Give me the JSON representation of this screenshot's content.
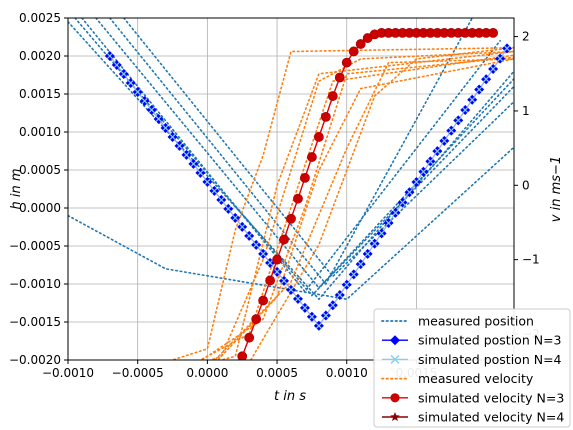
{
  "chart_data": {
    "type": "line",
    "xlabel": "t in s",
    "ylabel_left": "h in m",
    "ylabel_right": "v in ms−1",
    "xlim": [
      -0.001,
      0.0022
    ],
    "ylim_left": [
      -0.002,
      0.0025
    ],
    "ylim_right": [
      -2.35,
      2.25
    ],
    "x_ticks": [
      "−0.0010",
      "−0.0005",
      "0.0000",
      "0.0005",
      "0.0010",
      "0.0015"
    ],
    "y_left_ticks": [
      "−0.0020",
      "−0.0015",
      "−0.0010",
      "−0.0005",
      "0.0000",
      "0.0005",
      "0.0010",
      "0.0015",
      "0.0020",
      "0.0025"
    ],
    "y_right_ticks": [
      "−2",
      "−1",
      "0",
      "1",
      "2"
    ],
    "grid": true,
    "legend_position": "bottom-right",
    "legend": [
      "measured position",
      "simulated postion N=3",
      "simulated postion N=4",
      "measured velocity",
      "simulated velocity N=3",
      "simulated velocity N=4"
    ],
    "colors": {
      "measured_position": "#1f77b4",
      "simulated_position_n3": "#0000ff",
      "simulated_position_n4": "#87ceeb",
      "measured_velocity": "#ff7f0e",
      "simulated_velocity_n3": "#e00000",
      "simulated_velocity_n4": "#8b0000"
    },
    "measured_position_lines": [
      [
        [
          -0.001,
          0.00245
        ],
        [
          0.0008,
          -0.0012
        ],
        [
          0.0022,
          0.0018
        ]
      ],
      [
        [
          -0.00095,
          0.0025
        ],
        [
          0.00075,
          -0.00115
        ],
        [
          0.0022,
          0.0016
        ]
      ],
      [
        [
          -0.0009,
          0.0025
        ],
        [
          0.0007,
          -0.0011
        ],
        [
          0.0021,
          0.0022
        ]
      ],
      [
        [
          -0.0008,
          0.0025
        ],
        [
          0.0008,
          -0.00105
        ],
        [
          0.0022,
          0.0017
        ]
      ],
      [
        [
          -0.0007,
          0.0025
        ],
        [
          0.00085,
          -0.001
        ],
        [
          0.0019,
          0.0025
        ]
      ],
      [
        [
          -0.0006,
          0.0025
        ],
        [
          0.0009,
          -0.0009
        ],
        [
          0.0022,
          0.0014
        ]
      ],
      [
        [
          -0.001,
          -0.0001
        ],
        [
          -0.0003,
          -0.0008
        ],
        [
          0.001,
          -0.0012
        ],
        [
          0.0022,
          0.0008
        ]
      ]
    ],
    "measured_velocity_lines": [
      [
        [
          -0.001,
          -2.6
        ],
        [
          -0.0005,
          -2.5
        ],
        [
          0.0,
          -2.2
        ],
        [
          0.0002,
          -0.6
        ],
        [
          0.0004,
          0.4
        ],
        [
          0.0006,
          1.8
        ],
        [
          0.0022,
          1.85
        ]
      ],
      [
        [
          -0.001,
          -2.65
        ],
        [
          -0.0004,
          -2.6
        ],
        [
          0.0002,
          -2.3
        ],
        [
          0.0005,
          0.0
        ],
        [
          0.0008,
          1.5
        ],
        [
          0.0022,
          1.8
        ]
      ],
      [
        [
          -0.001,
          -2.4
        ],
        [
          -0.0005,
          -2.7
        ],
        [
          0.0001,
          -2.3
        ],
        [
          0.0004,
          -1.0
        ],
        [
          0.0008,
          1.4
        ],
        [
          0.0011,
          1.7
        ],
        [
          0.0022,
          1.8
        ]
      ],
      [
        [
          -0.001,
          -2.7
        ],
        [
          -0.0003,
          -2.6
        ],
        [
          0.0003,
          -2.0
        ],
        [
          0.0006,
          -0.3
        ],
        [
          0.0009,
          1.4
        ],
        [
          0.0022,
          1.75
        ]
      ],
      [
        [
          -0.001,
          -2.68
        ],
        [
          -0.0002,
          -2.55
        ],
        [
          0.0004,
          -1.8
        ],
        [
          0.0007,
          -0.3
        ],
        [
          0.001,
          1.5
        ],
        [
          0.0022,
          1.72
        ]
      ],
      [
        [
          -0.001,
          -2.8
        ],
        [
          0.0,
          -2.5
        ],
        [
          0.0005,
          -1.5
        ],
        [
          0.0008,
          0.2
        ],
        [
          0.0011,
          1.3
        ],
        [
          0.0022,
          1.7
        ]
      ],
      [
        [
          -0.001,
          -2.75
        ],
        [
          -0.0001,
          -2.65
        ],
        [
          0.0006,
          -1.3
        ],
        [
          0.001,
          0.5
        ],
        [
          0.0013,
          1.65
        ],
        [
          0.0022,
          1.7
        ]
      ],
      [
        [
          -0.001,
          -2.6
        ],
        [
          0.0002,
          -2.7
        ],
        [
          0.0008,
          -0.8
        ],
        [
          0.0012,
          1.2
        ],
        [
          0.0015,
          1.7
        ],
        [
          0.0022,
          1.85
        ]
      ]
    ],
    "simulated_position_n3": {
      "x_start": -0.0007,
      "x_step": 5e-05,
      "count": 58,
      "vertex_x": 0.0008,
      "vertex_y": -0.00155,
      "left_y": 0.002,
      "right_y": 0.0021
    },
    "simulated_velocity_n3": {
      "x": [
        -0.0007,
        -0.00065,
        -0.0006,
        -0.00055,
        -0.0005,
        -0.00045,
        -0.0004,
        -0.00035,
        -0.0003,
        -0.00025,
        -0.0002,
        -0.00015,
        -0.0001,
        -5e-05,
        0.0,
        5e-05,
        0.0001,
        0.00015,
        0.0002,
        0.00025,
        0.0003,
        0.00035,
        0.0004,
        0.00045,
        0.0005,
        0.00055,
        0.0006,
        0.00065,
        0.0007,
        0.00075,
        0.0008,
        0.00085,
        0.0009,
        0.00095,
        0.001,
        0.00105,
        0.0011,
        0.00115,
        0.0012,
        0.00125,
        0.0013,
        0.00135,
        0.0014,
        0.00145,
        0.0015,
        0.00155,
        0.0016,
        0.00165,
        0.0017,
        0.00175,
        0.0018,
        0.00185,
        0.0019,
        0.00195,
        0.002,
        0.00205
      ],
      "y": [
        -2.83,
        -2.83,
        -2.83,
        -2.83,
        -2.83,
        -2.83,
        -2.83,
        -2.83,
        -2.83,
        -2.83,
        -2.83,
        -2.83,
        -2.83,
        -2.83,
        -2.82,
        -2.8,
        -2.75,
        -2.65,
        -2.5,
        -2.3,
        -2.05,
        -1.8,
        -1.55,
        -1.28,
        -1.0,
        -0.73,
        -0.45,
        -0.18,
        0.1,
        0.38,
        0.65,
        0.92,
        1.2,
        1.45,
        1.65,
        1.8,
        1.9,
        1.98,
        2.03,
        2.05,
        2.05,
        2.05,
        2.05,
        2.05,
        2.05,
        2.05,
        2.05,
        2.05,
        2.05,
        2.05,
        2.05,
        2.05,
        2.05,
        2.05,
        2.05,
        2.05
      ]
    }
  }
}
